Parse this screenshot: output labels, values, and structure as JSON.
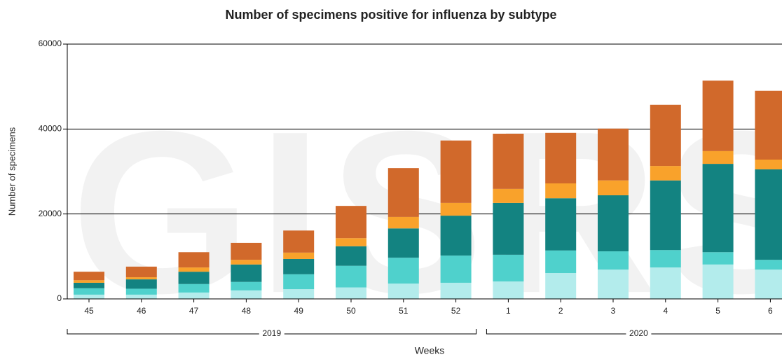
{
  "chart_data": {
    "type": "stacked-bar",
    "title": "Number of specimens positive for influenza by subtype",
    "watermark": "GISRS",
    "xlabel": "Weeks",
    "ylabel": "Number of specimens",
    "categories": [
      "45",
      "46",
      "47",
      "48",
      "49",
      "50",
      "51",
      "52",
      "1",
      "2",
      "3",
      "4",
      "5",
      "6"
    ],
    "groups": [
      {
        "label": "2019",
        "start": 0,
        "end": 7
      },
      {
        "label": "2020",
        "start": 8,
        "end": 13
      }
    ],
    "series": [
      {
        "color": "#b3ecec",
        "values": [
          1000,
          1000,
          1500,
          2000,
          2300,
          2700,
          3600,
          3800,
          4100,
          6100,
          6900,
          7400,
          8100,
          6900
        ]
      },
      {
        "color": "#4fd1cc",
        "values": [
          1500,
          1400,
          2000,
          2000,
          3500,
          5100,
          6100,
          6400,
          6300,
          5300,
          4300,
          4100,
          2900,
          2300
        ]
      },
      {
        "color": "#138381",
        "values": [
          1300,
          2200,
          2900,
          4100,
          3600,
          4600,
          6900,
          9400,
          12200,
          12300,
          13200,
          16400,
          20800,
          21300
        ]
      },
      {
        "color": "#f9a22b",
        "values": [
          600,
          500,
          1000,
          1100,
          1500,
          1900,
          2700,
          3000,
          3300,
          3500,
          3500,
          3400,
          3000,
          2300
        ]
      },
      {
        "color": "#d1692b",
        "values": [
          2000,
          2500,
          3600,
          4000,
          5200,
          7600,
          11500,
          14700,
          13000,
          11900,
          12200,
          14400,
          16600,
          16200
        ]
      }
    ],
    "ylim": [
      0,
      60000
    ],
    "yticks": [
      0,
      20000,
      40000,
      60000
    ],
    "grid": true
  }
}
